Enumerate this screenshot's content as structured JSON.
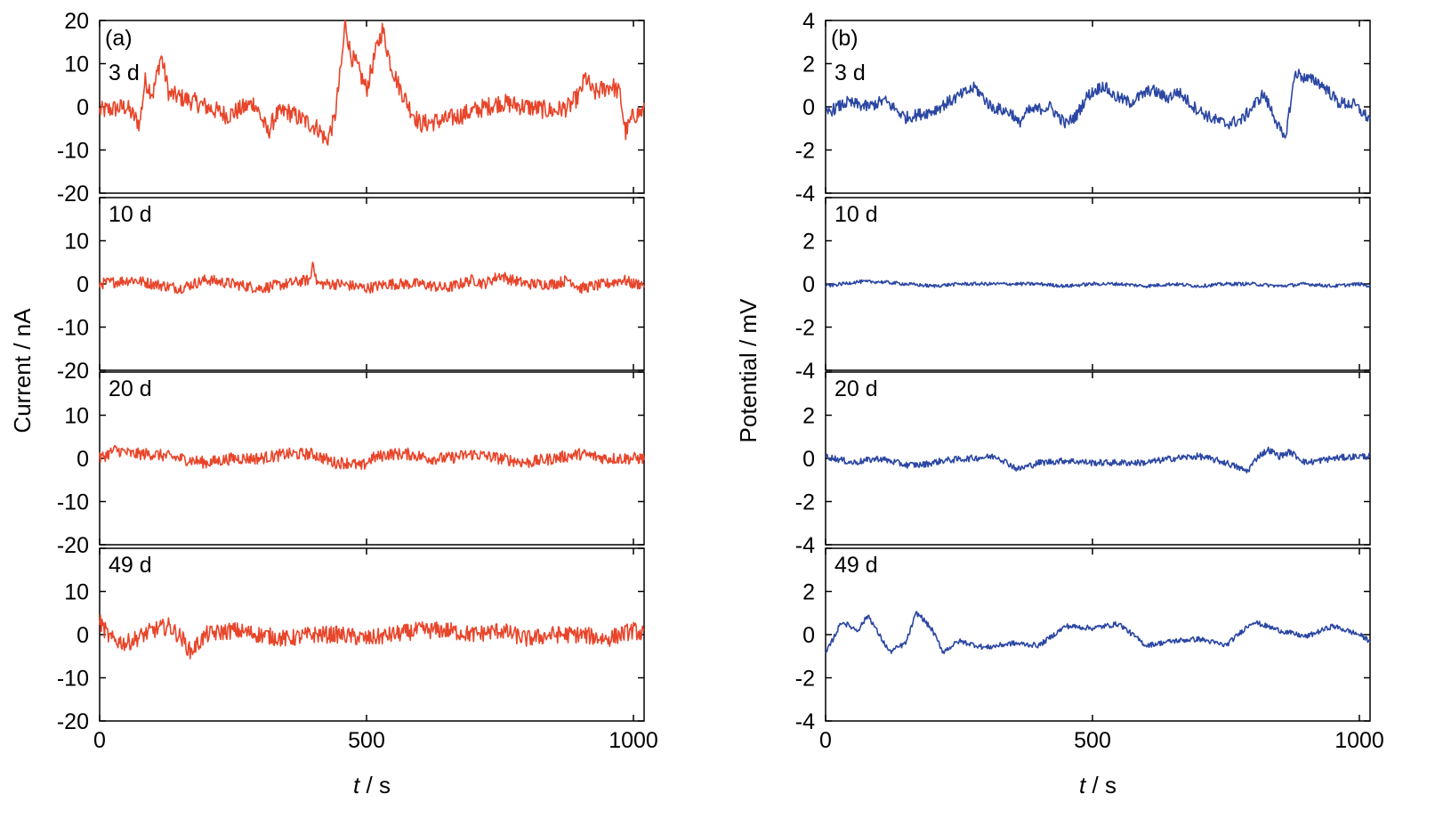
{
  "colors": {
    "current": "#e8452a",
    "potential": "#2b47a3",
    "axis": "#000000"
  },
  "chart_data": [
    {
      "type": "line",
      "panel_label": "(a)",
      "ylabel": "Current / nA",
      "xlabel_var": "t",
      "xlabel_unit": " / s",
      "xlim": [
        0,
        1020
      ],
      "x_ticks": [
        0,
        500,
        1000
      ],
      "x_tick_labels": [
        "0",
        "500",
        "1000"
      ],
      "ylim": [
        -20,
        20
      ],
      "y_ticks": [
        -20,
        -10,
        0,
        10,
        20
      ],
      "y_tick_labels": [
        "-20",
        "-10",
        "0",
        "10",
        "20"
      ],
      "top_subplot_top_tick_label": "20",
      "grid": false,
      "subplots": [
        {
          "label": "3 d",
          "noise": 2.2,
          "x": [
            0,
            50,
            75,
            85,
            100,
            115,
            130,
            180,
            240,
            290,
            315,
            330,
            350,
            380,
            410,
            425,
            440,
            455,
            460,
            470,
            480,
            500,
            520,
            530,
            545,
            560,
            580,
            600,
            650,
            700,
            750,
            800,
            850,
            880,
            900,
            910,
            925,
            940,
            960,
            975,
            985,
            1000,
            1020
          ],
          "y": [
            -1,
            0,
            -4,
            6,
            3,
            12,
            3,
            1,
            -2,
            1,
            -6,
            -2,
            -1,
            -3,
            -5,
            -8,
            -3,
            12,
            20,
            12,
            10,
            4,
            14,
            18,
            10,
            5,
            0,
            -4,
            -3,
            -1,
            1,
            0,
            -1,
            0,
            3,
            7,
            3,
            4,
            5,
            3,
            -6,
            -2,
            -1
          ]
        },
        {
          "label": "10 d",
          "noise": 1.3,
          "x": [
            0,
            60,
            100,
            150,
            200,
            250,
            300,
            350,
            395,
            400,
            405,
            410,
            450,
            500,
            540,
            575,
            600,
            650,
            700,
            720,
            750,
            770,
            800,
            850,
            880,
            900,
            950,
            980,
            1000,
            1020
          ],
          "y": [
            0,
            1,
            0,
            -1,
            1,
            0,
            -1,
            0,
            1,
            6,
            1,
            0,
            0,
            -1,
            0,
            0,
            0,
            -1,
            1,
            0,
            2,
            1,
            0,
            0,
            1,
            -1,
            0,
            1,
            0,
            0
          ]
        },
        {
          "label": "20 d",
          "noise": 1.4,
          "x": [
            0,
            30,
            60,
            100,
            150,
            200,
            250,
            300,
            350,
            400,
            440,
            470,
            490,
            510,
            540,
            580,
            620,
            650,
            700,
            750,
            800,
            850,
            900,
            950,
            1000,
            1020
          ],
          "y": [
            0,
            2,
            1,
            1,
            0,
            -1,
            0,
            0,
            1,
            1,
            -1,
            -1,
            -2,
            0,
            1,
            1,
            0,
            0,
            1,
            0,
            -1,
            0,
            1,
            0,
            0,
            0
          ]
        },
        {
          "label": "49 d",
          "noise": 2.0,
          "x": [
            0,
            20,
            50,
            100,
            130,
            155,
            170,
            200,
            250,
            300,
            350,
            400,
            450,
            500,
            550,
            600,
            650,
            700,
            750,
            800,
            850,
            900,
            950,
            1000,
            1020
          ],
          "y": [
            3,
            -1,
            -2,
            1,
            2,
            -1,
            -4,
            0,
            1,
            0,
            -1,
            0,
            0,
            -1,
            0,
            1,
            1,
            0,
            1,
            -1,
            0,
            0,
            -1,
            1,
            0
          ]
        }
      ]
    },
    {
      "type": "line",
      "panel_label": "(b)",
      "ylabel": "Potential / mV",
      "xlabel_var": "t",
      "xlabel_unit": " / s",
      "xlim": [
        0,
        1020
      ],
      "x_ticks": [
        0,
        500,
        1000
      ],
      "x_tick_labels": [
        "0",
        "500",
        "1000"
      ],
      "ylim": [
        -4,
        4
      ],
      "y_ticks": [
        -4,
        -2,
        0,
        2,
        4
      ],
      "y_tick_labels": [
        "-4",
        "-2",
        "0",
        "2",
        "4"
      ],
      "top_subplot_top_tick_label": "4",
      "grid": false,
      "subplots": [
        {
          "label": "3 d",
          "noise": 0.28,
          "x": [
            0,
            40,
            80,
            110,
            150,
            200,
            250,
            280,
            310,
            350,
            360,
            380,
            420,
            450,
            470,
            490,
            520,
            540,
            570,
            610,
            640,
            660,
            690,
            720,
            750,
            780,
            820,
            840,
            860,
            880,
            900,
            920,
            940,
            960,
            990,
            1020
          ],
          "y": [
            -0.3,
            0.2,
            0,
            0.3,
            -0.5,
            -0.2,
            0.5,
            0.9,
            0,
            -0.3,
            -0.8,
            -0.2,
            0,
            -0.8,
            -0.4,
            0.5,
            1.0,
            0.5,
            0.2,
            0.8,
            0.4,
            0.7,
            0,
            -0.5,
            -0.8,
            -0.6,
            0.6,
            -0.4,
            -1.6,
            1.6,
            1.3,
            1.2,
            0.8,
            0.2,
            0.1,
            -0.6
          ]
        },
        {
          "label": "10 d",
          "noise": 0.08,
          "x": [
            0,
            60,
            100,
            150,
            200,
            250,
            300,
            350,
            400,
            450,
            500,
            550,
            600,
            650,
            700,
            750,
            800,
            850,
            900,
            950,
            1000,
            1020
          ],
          "y": [
            -0.1,
            0.1,
            0.1,
            0,
            -0.1,
            0,
            0,
            0,
            0,
            -0.1,
            0,
            0,
            -0.1,
            0,
            -0.1,
            0,
            0,
            -0.1,
            0,
            -0.1,
            0,
            -0.1
          ]
        },
        {
          "label": "20 d",
          "noise": 0.15,
          "x": [
            0,
            50,
            100,
            150,
            180,
            220,
            270,
            320,
            360,
            400,
            450,
            500,
            550,
            600,
            650,
            700,
            750,
            790,
            810,
            830,
            850,
            870,
            900,
            950,
            1000,
            1020
          ],
          "y": [
            0.1,
            -0.2,
            0,
            -0.3,
            -0.3,
            -0.1,
            0,
            0.1,
            -0.5,
            -0.2,
            -0.1,
            -0.2,
            -0.2,
            -0.2,
            0,
            0.1,
            -0.2,
            -0.6,
            0.1,
            0.4,
            0.1,
            0.3,
            -0.2,
            0,
            0.1,
            0.1
          ]
        },
        {
          "label": "49 d",
          "noise": 0.12,
          "x": [
            0,
            30,
            60,
            80,
            100,
            120,
            150,
            170,
            180,
            200,
            220,
            250,
            300,
            350,
            400,
            450,
            500,
            550,
            600,
            650,
            700,
            750,
            800,
            850,
            900,
            950,
            1000,
            1020
          ],
          "y": [
            -0.9,
            0.6,
            0.2,
            0.9,
            0,
            -0.8,
            -0.4,
            1.0,
            0.8,
            0.2,
            -0.8,
            -0.3,
            -0.6,
            -0.4,
            -0.5,
            0.4,
            0.3,
            0.5,
            -0.5,
            -0.3,
            -0.2,
            -0.5,
            0.6,
            0.2,
            -0.1,
            0.4,
            0,
            -0.3
          ]
        }
      ]
    }
  ]
}
